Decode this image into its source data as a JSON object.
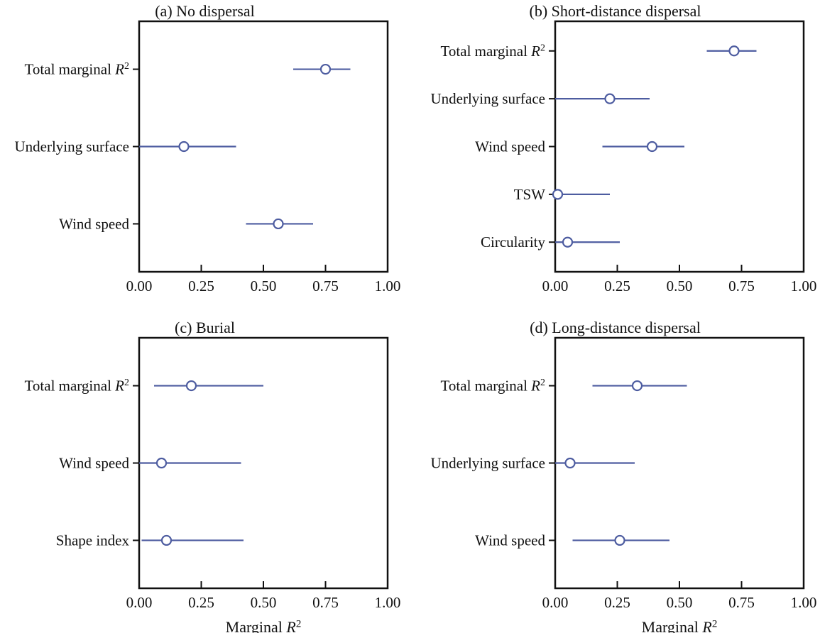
{
  "figure": {
    "line_color": "#4d5ca0",
    "marker_fill": "#ffffff",
    "axis_color": "#111111",
    "background": "#ffffff",
    "shared_xlabel": "Marginal R²"
  },
  "chart_data": [
    {
      "type": "scatter",
      "subtype": "dot-and-whisker",
      "title": "(a) No dispersal",
      "categories": [
        "Total marginal R²",
        "Underlying surface",
        "Wind speed"
      ],
      "estimates": [
        0.75,
        0.18,
        0.56
      ],
      "ci_low": [
        0.62,
        0.0,
        0.43
      ],
      "ci_high": [
        0.85,
        0.39,
        0.7
      ],
      "xlim": [
        0,
        1
      ],
      "xticks": [
        "0.00",
        "0.25",
        "0.50",
        "0.75",
        "1.00"
      ],
      "xlabel": "",
      "grid": false,
      "legend": "none"
    },
    {
      "type": "scatter",
      "subtype": "dot-and-whisker",
      "title": "(b) Short-distance dispersal",
      "categories": [
        "Total marginal R²",
        "Underlying surface",
        "Wind speed",
        "TSW",
        "Circularity"
      ],
      "estimates": [
        0.72,
        0.22,
        0.39,
        0.01,
        0.05
      ],
      "ci_low": [
        0.61,
        0.0,
        0.19,
        0.0,
        0.0
      ],
      "ci_high": [
        0.81,
        0.38,
        0.52,
        0.22,
        0.26
      ],
      "xlim": [
        0,
        1
      ],
      "xticks": [
        "0.00",
        "0.25",
        "0.50",
        "0.75",
        "1.00"
      ],
      "xlabel": "",
      "grid": false,
      "legend": "none"
    },
    {
      "type": "scatter",
      "subtype": "dot-and-whisker",
      "title": "(c) Burial",
      "categories": [
        "Total marginal R²",
        "Wind speed",
        "Shape index"
      ],
      "estimates": [
        0.21,
        0.09,
        0.11
      ],
      "ci_low": [
        0.06,
        0.0,
        0.01
      ],
      "ci_high": [
        0.5,
        0.41,
        0.42
      ],
      "xlim": [
        0,
        1
      ],
      "xticks": [
        "0.00",
        "0.25",
        "0.50",
        "0.75",
        "1.00"
      ],
      "xlabel": "Marginal R²",
      "grid": false,
      "legend": "none"
    },
    {
      "type": "scatter",
      "subtype": "dot-and-whisker",
      "title": "(d) Long-distance dispersal",
      "categories": [
        "Total marginal R²",
        "Underlying surface",
        "Wind speed"
      ],
      "estimates": [
        0.33,
        0.06,
        0.26
      ],
      "ci_low": [
        0.15,
        0.0,
        0.07
      ],
      "ci_high": [
        0.53,
        0.32,
        0.46
      ],
      "xlim": [
        0,
        1
      ],
      "xticks": [
        "0.00",
        "0.25",
        "0.50",
        "0.75",
        "1.00"
      ],
      "xlabel": "Marginal R²",
      "grid": false,
      "legend": "none"
    }
  ]
}
